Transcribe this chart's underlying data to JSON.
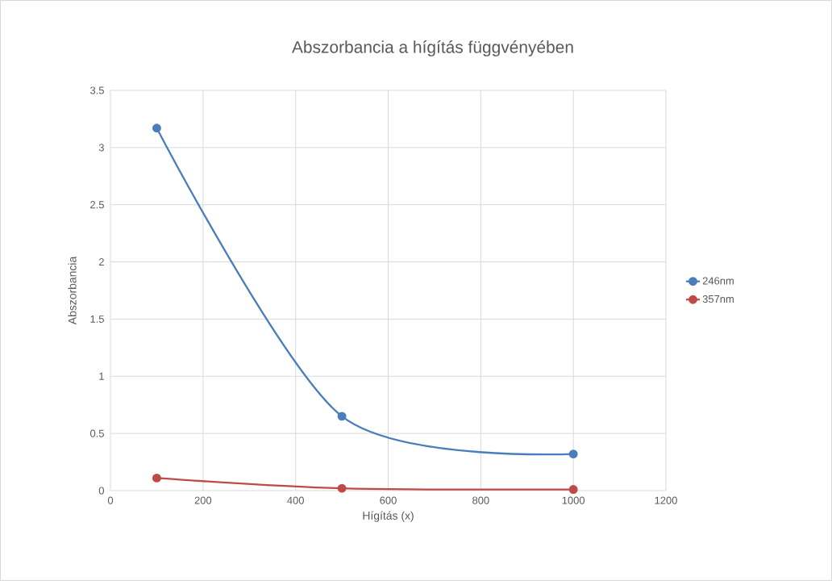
{
  "chart_data": {
    "type": "line",
    "title": "Abszorbancia a hígítás függvényében",
    "xlabel": "Hígítás (x)",
    "ylabel": "Abszorbancia",
    "x": [
      100,
      500,
      1000
    ],
    "series": [
      {
        "name": "246nm",
        "color": "#4a7ebb",
        "values": [
          3.17,
          0.65,
          0.32
        ]
      },
      {
        "name": "357nm",
        "color": "#be4b48",
        "values": [
          0.11,
          0.02,
          0.01
        ]
      }
    ],
    "xlim": [
      0,
      1200
    ],
    "xticks": [
      0,
      200,
      400,
      600,
      800,
      1000,
      1200
    ],
    "ylim": [
      0,
      3.5
    ],
    "yticks": [
      0,
      0.5,
      1,
      1.5,
      2,
      2.5,
      3,
      3.5
    ],
    "grid": true,
    "legend": "right",
    "marker": "circle",
    "line_style": "solid"
  }
}
